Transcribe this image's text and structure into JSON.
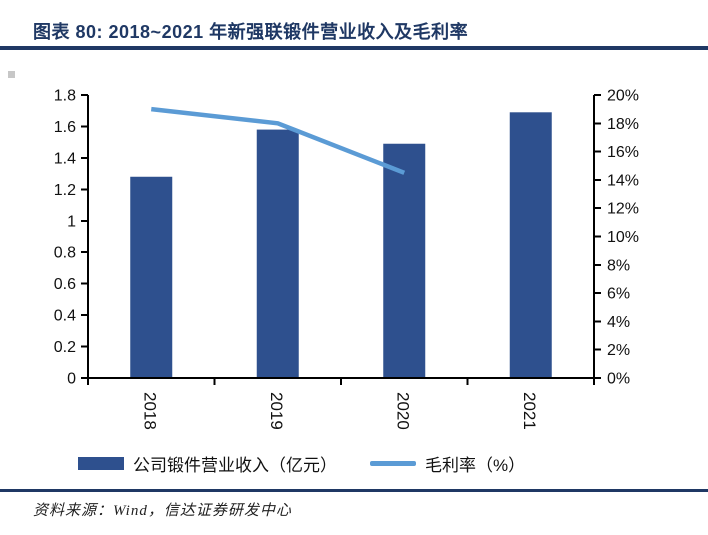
{
  "page": {
    "source": "资料来源：Wind，信达证券研发中心"
  },
  "colors": {
    "accent_navy": "#1F3864",
    "bar_blue": "#2E508E",
    "line_blue": "#5B9BD5",
    "axis_black": "#000000"
  },
  "chart_data": {
    "type": "bar",
    "title": "图表 80: 2018~2021 年新强联锻件营业收入及毛利率",
    "categories": [
      "2018",
      "2019",
      "2020",
      "2021"
    ],
    "series": [
      {
        "name": "公司锻件营业收入（亿元）",
        "type": "bar",
        "axis": "left",
        "color": "#2E508E",
        "values": [
          1.28,
          1.58,
          1.49,
          1.69
        ]
      },
      {
        "name": "毛利率（%）",
        "type": "line",
        "axis": "right",
        "color": "#5B9BD5",
        "values": [
          19.0,
          18.0,
          14.5,
          null
        ]
      }
    ],
    "left_axis": {
      "min": 0,
      "max": 1.8,
      "step": 0.2,
      "ticks": [
        "1.8",
        "1.6",
        "1.4",
        "1.2",
        "1",
        "0.8",
        "0.6",
        "0.4",
        "0.2",
        "0"
      ]
    },
    "right_axis": {
      "min": 0,
      "max": 20,
      "step": 2,
      "ticks": [
        "20%",
        "18%",
        "16%",
        "14%",
        "12%",
        "10%",
        "8%",
        "6%",
        "4%",
        "2%",
        "0%"
      ]
    },
    "xlabel": "",
    "ylabel": "",
    "grid": false,
    "legend_position": "bottom"
  }
}
